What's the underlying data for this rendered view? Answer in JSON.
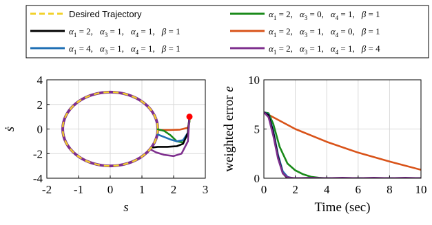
{
  "legend": {
    "entries": [
      {
        "id": "desired",
        "text": "Desired Trajectory",
        "color": "#f2d12b",
        "dash": true
      },
      {
        "id": "s1",
        "parts": [
          [
            "α",
            1,
            "2"
          ],
          [
            "α",
            3,
            "1"
          ],
          [
            "α",
            4,
            "1"
          ],
          [
            "β",
            null,
            "1"
          ]
        ],
        "color": "#000000"
      },
      {
        "id": "s2",
        "parts": [
          [
            "α",
            1,
            "4"
          ],
          [
            "α",
            3,
            "1"
          ],
          [
            "α",
            4,
            "1"
          ],
          [
            "β",
            null,
            "1"
          ]
        ],
        "color": "#1f6fb4"
      },
      {
        "id": "s3",
        "parts": [
          [
            "α",
            1,
            "2"
          ],
          [
            "α",
            3,
            "0"
          ],
          [
            "α",
            4,
            "1"
          ],
          [
            "β",
            null,
            "1"
          ]
        ],
        "color": "#1a8a1a"
      },
      {
        "id": "s4",
        "parts": [
          [
            "α",
            1,
            "2"
          ],
          [
            "α",
            3,
            "1"
          ],
          [
            "α",
            4,
            "0"
          ],
          [
            "β",
            null,
            "1"
          ]
        ],
        "color": "#d95319"
      },
      {
        "id": "s5",
        "parts": [
          [
            "α",
            1,
            "2"
          ],
          [
            "α",
            3,
            "1"
          ],
          [
            "α",
            4,
            "1"
          ],
          [
            "β",
            null,
            "4"
          ]
        ],
        "color": "#7e2f8e"
      }
    ]
  },
  "chart_data": [
    {
      "type": "line",
      "xlabel": "s",
      "ylabel": "ṡ",
      "xlim": [
        -2,
        3
      ],
      "ylim": [
        -4,
        4
      ],
      "xticks": [
        "-2",
        "-1",
        "0",
        "1",
        "2",
        "3"
      ],
      "yticks": [
        "-4",
        "-2",
        "0",
        "2",
        "4"
      ],
      "grid": true,
      "desired_circle": {
        "center": [
          0,
          0
        ],
        "radius_x": 1.5,
        "radius_y": 3
      },
      "initial_point": {
        "x": 2.5,
        "y": 1.0,
        "color": "#ff0000"
      },
      "series": [
        {
          "ref": "s4",
          "x": [
            2.5,
            2.5,
            2.45,
            2.2,
            1.9,
            1.7,
            1.55
          ],
          "y": [
            1.0,
            0.6,
            0.1,
            -0.05,
            -0.08,
            -0.08,
            -0.08
          ]
        },
        {
          "ref": "s3",
          "x": [
            2.5,
            2.5,
            2.45,
            2.3,
            2.1,
            1.9,
            1.7,
            1.5
          ],
          "y": [
            1.0,
            0.6,
            -0.4,
            -1.1,
            -1.0,
            -0.5,
            -0.15,
            -0.02
          ]
        },
        {
          "ref": "s2",
          "x": [
            2.5,
            2.45,
            2.3,
            2.1,
            1.9,
            1.7,
            1.5
          ],
          "y": [
            1.0,
            -0.3,
            -0.9,
            -1.0,
            -0.85,
            -0.65,
            -0.45
          ]
        },
        {
          "ref": "s1",
          "x": [
            2.5,
            2.45,
            2.3,
            2.1,
            1.8,
            1.5,
            1.35
          ],
          "y": [
            1.0,
            -0.3,
            -1.2,
            -1.4,
            -1.45,
            -1.45,
            -1.5
          ]
        },
        {
          "ref": "s5",
          "x": [
            2.5,
            2.45,
            2.25,
            2.0,
            1.7,
            1.45,
            1.3
          ],
          "y": [
            1.0,
            -1.0,
            -2.0,
            -2.2,
            -2.1,
            -1.9,
            -1.7
          ]
        }
      ]
    },
    {
      "type": "line",
      "xlabel": "Time (sec)",
      "ylabel": "weighted error e",
      "xlim": [
        0,
        10
      ],
      "ylim": [
        0,
        10
      ],
      "xticks": [
        "0",
        "2",
        "4",
        "6",
        "8",
        "10"
      ],
      "yticks": [
        "0",
        "5",
        "10"
      ],
      "grid": true,
      "series": [
        {
          "ref": "s4",
          "x": [
            0,
            2,
            4,
            6,
            8,
            10
          ],
          "y": [
            6.7,
            5.0,
            3.7,
            2.6,
            1.7,
            0.85
          ]
        },
        {
          "ref": "s3",
          "x": [
            0,
            0.3,
            0.6,
            1,
            1.5,
            2,
            2.5,
            3,
            3.5,
            4,
            10
          ],
          "y": [
            6.7,
            6.6,
            5.5,
            3.2,
            1.5,
            0.8,
            0.4,
            0.15,
            0.05,
            0.0,
            0.0
          ]
        },
        {
          "ref": "s2",
          "x": [
            0,
            0.3,
            0.6,
            0.9,
            1.2,
            1.5,
            1.8,
            10
          ],
          "y": [
            6.7,
            6.5,
            4.8,
            2.4,
            0.7,
            0.15,
            0.0,
            0.0
          ]
        },
        {
          "ref": "s1",
          "x": [
            0,
            0.3,
            0.6,
            0.9,
            1.2,
            1.5,
            1.8,
            10
          ],
          "y": [
            6.7,
            6.4,
            4.6,
            2.2,
            0.5,
            0.0,
            0.0,
            0.0
          ]
        },
        {
          "ref": "s5",
          "x": [
            0,
            0.3,
            0.6,
            0.9,
            1.2,
            1.5,
            2,
            3,
            4,
            5,
            6,
            7,
            8,
            9,
            10
          ],
          "y": [
            6.7,
            6.2,
            4.3,
            2.0,
            0.5,
            0.1,
            0.0,
            0.05,
            0.0,
            0.05,
            0.0,
            0.05,
            0.0,
            0.05,
            0.0
          ]
        }
      ]
    }
  ]
}
